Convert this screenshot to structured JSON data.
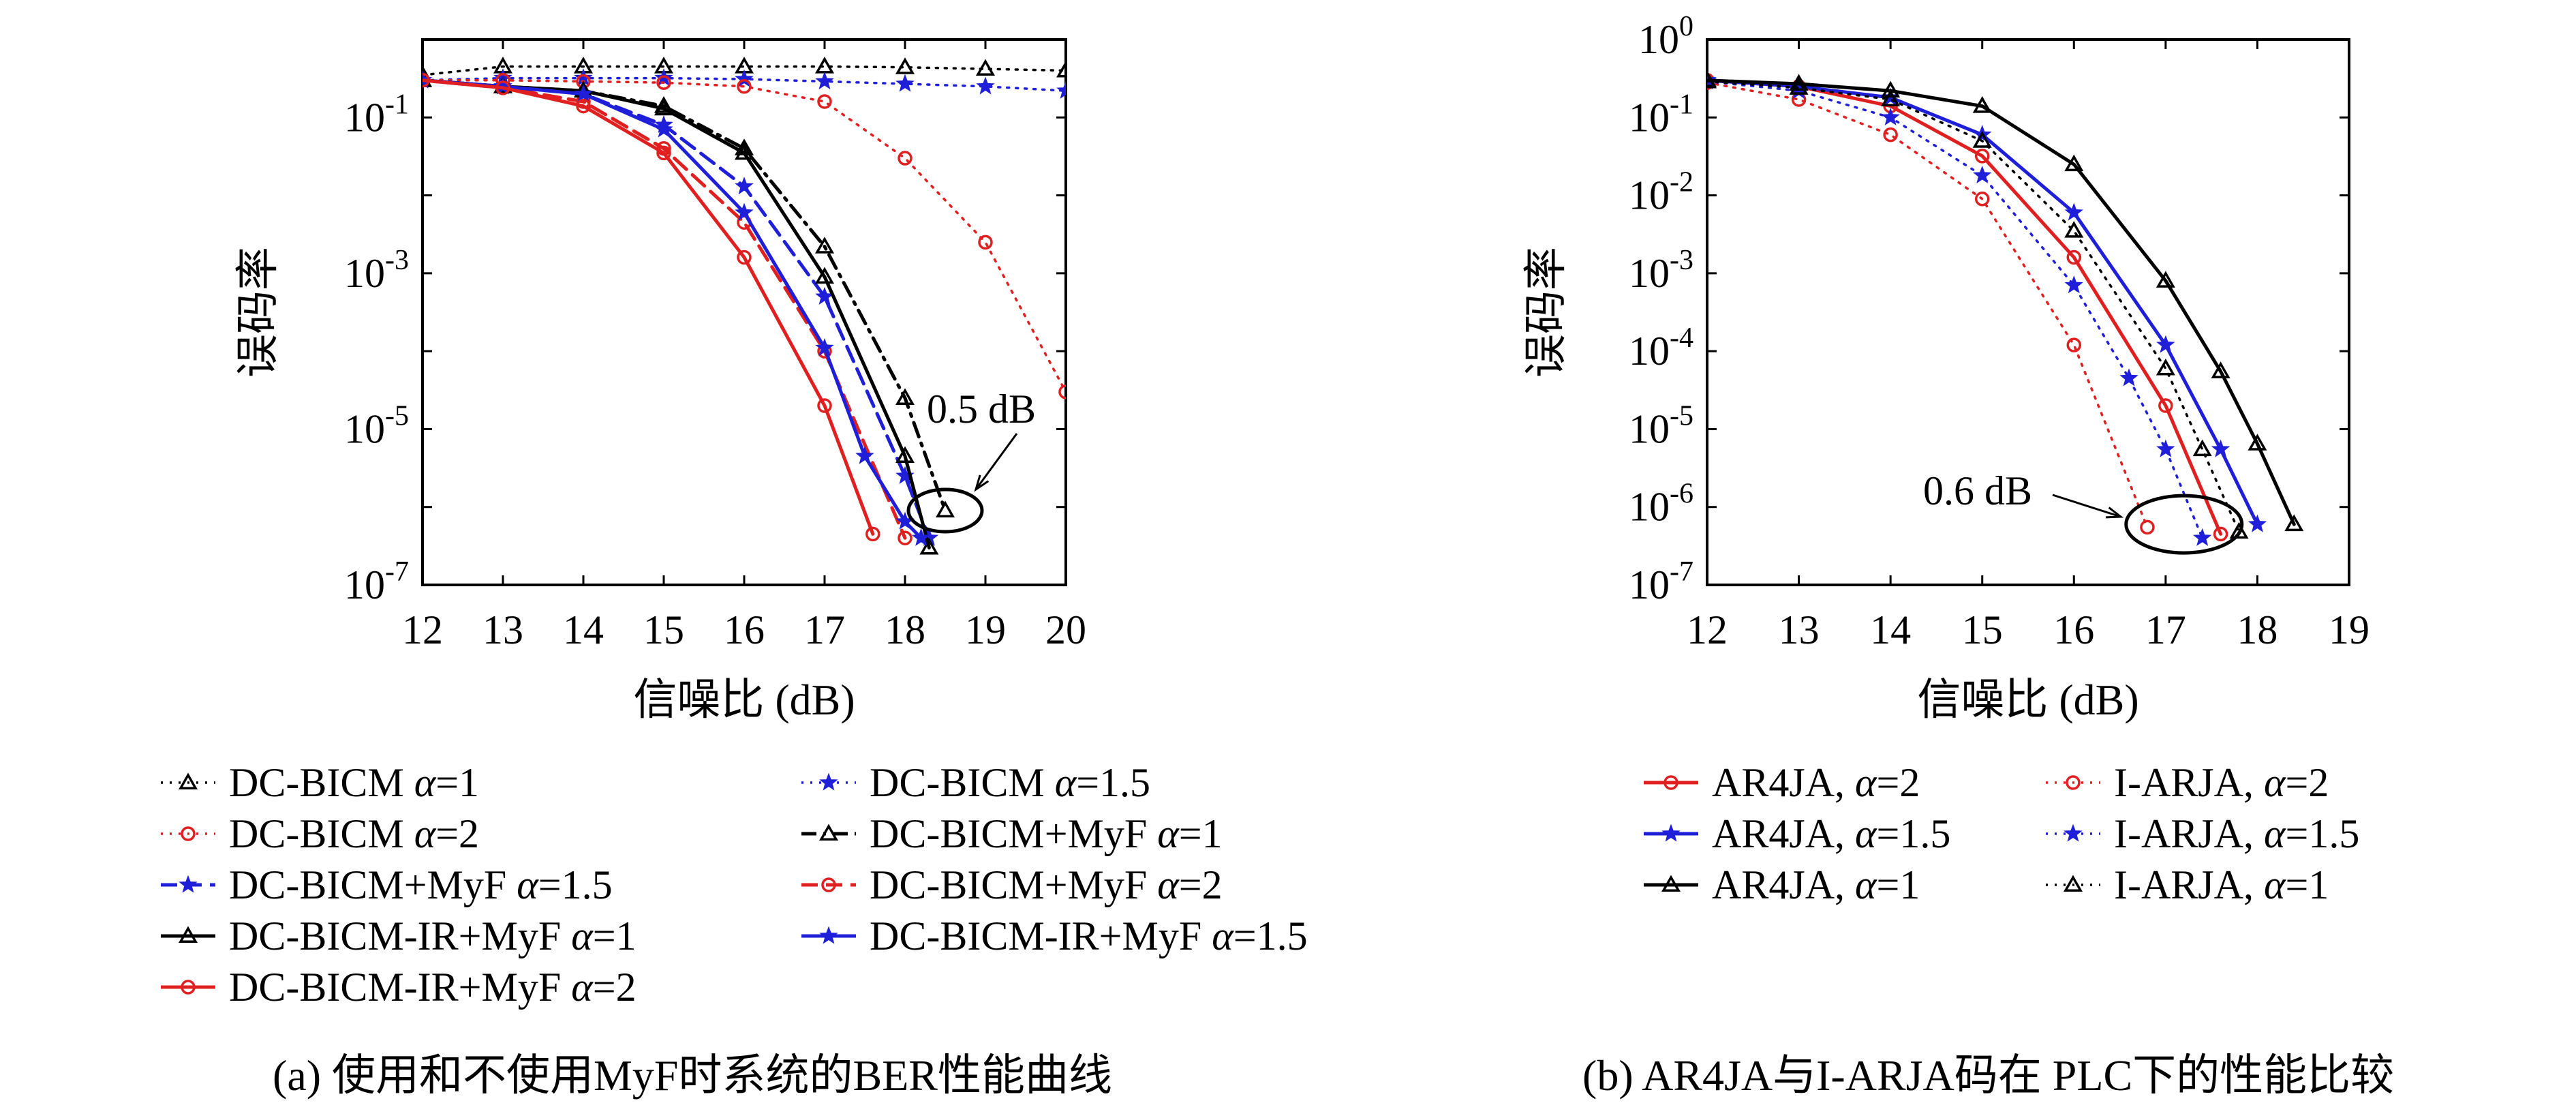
{
  "chart_data": [
    {
      "type": "line",
      "panel": "a",
      "caption": "(a) 使用和不使用MyF时系统的BER性能曲线",
      "xlabel": "信噪比 (dB)",
      "ylabel": "误码率",
      "x_ticks": [
        "12",
        "13",
        "14",
        "15",
        "16",
        "17",
        "18",
        "19",
        "20"
      ],
      "y_ticks": [
        {
          "base": "10",
          "exp": "-1"
        },
        {
          "base": "10",
          "exp": "-3"
        },
        {
          "base": "10",
          "exp": "-5"
        },
        {
          "base": "10",
          "exp": "-7"
        }
      ],
      "xlim": [
        12,
        20
      ],
      "ylim": [
        1e-07,
        1
      ],
      "yscale": "log",
      "annotation": "0.5 dB",
      "legend_columns": 2,
      "series": [
        {
          "name": "DC-BICM α=1",
          "alpha": "1",
          "color": "#000000",
          "dash": "dotted",
          "marker": "triangle",
          "x": [
            12,
            13,
            14,
            15,
            16,
            17,
            18,
            19,
            20
          ],
          "y": [
            0.35,
            0.45,
            0.45,
            0.45,
            0.45,
            0.45,
            0.44,
            0.42,
            0.4
          ]
        },
        {
          "name": "DC-BICM α=1.5",
          "alpha": "1.5",
          "color": "#1f1fd9",
          "dash": "dotted",
          "marker": "star",
          "x": [
            12,
            13,
            14,
            15,
            16,
            17,
            18,
            19,
            20
          ],
          "y": [
            0.3,
            0.32,
            0.32,
            0.32,
            0.31,
            0.29,
            0.27,
            0.25,
            0.22
          ]
        },
        {
          "name": "DC-BICM α=2",
          "alpha": "2",
          "color": "#e02020",
          "dash": "dotted",
          "marker": "circle",
          "x": [
            12,
            13,
            14,
            15,
            16,
            17,
            18,
            19,
            20
          ],
          "y": [
            0.3,
            0.3,
            0.29,
            0.28,
            0.25,
            0.16,
            0.03,
            0.0025,
            3e-05
          ]
        },
        {
          "name": "DC-BICM+MyF α=1",
          "alpha": "1",
          "color": "#000000",
          "dash": "dashdot",
          "marker": "triangle",
          "x": [
            12,
            13,
            14,
            15,
            16,
            17,
            18,
            18.5
          ],
          "y": [
            0.3,
            0.25,
            0.22,
            0.14,
            0.04,
            0.0022,
            2.5e-05,
            9e-07
          ]
        },
        {
          "name": "DC-BICM+MyF α=1.5",
          "alpha": "1.5",
          "color": "#1f1fd9",
          "dash": "dashed",
          "marker": "star",
          "x": [
            12,
            13,
            14,
            15,
            16,
            17,
            18,
            18.3
          ],
          "y": [
            0.3,
            0.25,
            0.2,
            0.08,
            0.013,
            0.0005,
            2.5e-06,
            4e-07
          ]
        },
        {
          "name": "DC-BICM+MyF α=2",
          "alpha": "2",
          "color": "#e02020",
          "dash": "dashed",
          "marker": "circle",
          "x": [
            12,
            13,
            14,
            15,
            16,
            17,
            18
          ],
          "y": [
            0.3,
            0.24,
            0.16,
            0.04,
            0.0045,
            0.0001,
            4e-07
          ]
        },
        {
          "name": "DC-BICM-IR+MyF α=1",
          "alpha": "1",
          "color": "#000000",
          "dash": "solid",
          "marker": "triangle",
          "x": [
            12,
            13,
            14,
            15,
            16,
            17,
            18,
            18.3
          ],
          "y": [
            0.3,
            0.25,
            0.22,
            0.13,
            0.035,
            0.0009,
            4.5e-06,
            3e-07
          ]
        },
        {
          "name": "DC-BICM-IR+MyF α=1.5",
          "alpha": "1.5",
          "color": "#1f1fd9",
          "dash": "solid",
          "marker": "star",
          "x": [
            12,
            13,
            14,
            15,
            16,
            17,
            17.5,
            18,
            18.2
          ],
          "y": [
            0.3,
            0.25,
            0.2,
            0.07,
            0.006,
            0.00011,
            4.5e-06,
            6.5e-07,
            4e-07
          ]
        },
        {
          "name": "DC-BICM-IR+MyF α=2",
          "alpha": "2",
          "color": "#e02020",
          "dash": "solid",
          "marker": "circle",
          "x": [
            12,
            13,
            14,
            15,
            16,
            17,
            17.6
          ],
          "y": [
            0.3,
            0.24,
            0.14,
            0.035,
            0.0016,
            2e-05,
            4.5e-07
          ]
        }
      ]
    },
    {
      "type": "line",
      "panel": "b",
      "caption": "(b) AR4JA与I-ARJA码在 PLC下的性能比较",
      "xlabel": "信噪比 (dB)",
      "ylabel": "误码率",
      "x_ticks": [
        "12",
        "13",
        "14",
        "15",
        "16",
        "17",
        "18",
        "19"
      ],
      "y_ticks": [
        {
          "base": "10",
          "exp": "0"
        },
        {
          "base": "10",
          "exp": "-1"
        },
        {
          "base": "10",
          "exp": "-2"
        },
        {
          "base": "10",
          "exp": "-3"
        },
        {
          "base": "10",
          "exp": "-4"
        },
        {
          "base": "10",
          "exp": "-5"
        },
        {
          "base": "10",
          "exp": "-6"
        },
        {
          "base": "10",
          "exp": "-7"
        }
      ],
      "xlim": [
        12,
        19
      ],
      "ylim": [
        1e-07,
        1
      ],
      "yscale": "log",
      "annotation": "0.6 dB",
      "legend_columns": 2,
      "series": [
        {
          "name": "AR4JA, α=2",
          "alpha": "2",
          "color": "#e02020",
          "dash": "solid",
          "marker": "circle",
          "x": [
            12,
            13,
            14,
            15,
            16,
            17,
            17.6
          ],
          "y": [
            0.3,
            0.25,
            0.14,
            0.032,
            0.0016,
            2e-05,
            4.5e-07
          ]
        },
        {
          "name": "I-ARJA, α=2",
          "alpha": "2",
          "color": "#e02020",
          "dash": "dotted",
          "marker": "circle",
          "x": [
            12,
            13,
            14,
            15,
            16,
            16.8
          ],
          "y": [
            0.28,
            0.17,
            0.06,
            0.009,
            0.00012,
            5.5e-07
          ]
        },
        {
          "name": "AR4JA, α=1.5",
          "alpha": "1.5",
          "color": "#1f1fd9",
          "dash": "solid",
          "marker": "star",
          "x": [
            12,
            13,
            14,
            15,
            16,
            17,
            17.6,
            18
          ],
          "y": [
            0.3,
            0.25,
            0.18,
            0.06,
            0.006,
            0.00012,
            5.5e-06,
            6e-07
          ]
        },
        {
          "name": "I-ARJA, α=1.5",
          "alpha": "1.5",
          "color": "#1f1fd9",
          "dash": "dotted",
          "marker": "star",
          "x": [
            12,
            13,
            14,
            15,
            16,
            16.6,
            17,
            17.4
          ],
          "y": [
            0.29,
            0.22,
            0.1,
            0.018,
            0.0007,
            4.5e-05,
            5.5e-06,
            4e-07
          ]
        },
        {
          "name": "AR4JA, α=1",
          "alpha": "1",
          "color": "#000000",
          "dash": "solid",
          "marker": "triangle",
          "x": [
            12,
            13,
            14,
            15,
            16,
            17,
            17.6,
            18,
            18.4
          ],
          "y": [
            0.3,
            0.27,
            0.22,
            0.14,
            0.025,
            0.0008,
            5.5e-05,
            6.5e-06,
            6e-07
          ]
        },
        {
          "name": "I-ARJA, α=1",
          "alpha": "1",
          "color": "#000000",
          "dash": "dotted",
          "marker": "triangle",
          "x": [
            12,
            13,
            14,
            15,
            16,
            17,
            17.4,
            17.8
          ],
          "y": [
            0.29,
            0.24,
            0.17,
            0.05,
            0.0035,
            6e-05,
            5.5e-06,
            4.8e-07
          ]
        }
      ]
    }
  ]
}
